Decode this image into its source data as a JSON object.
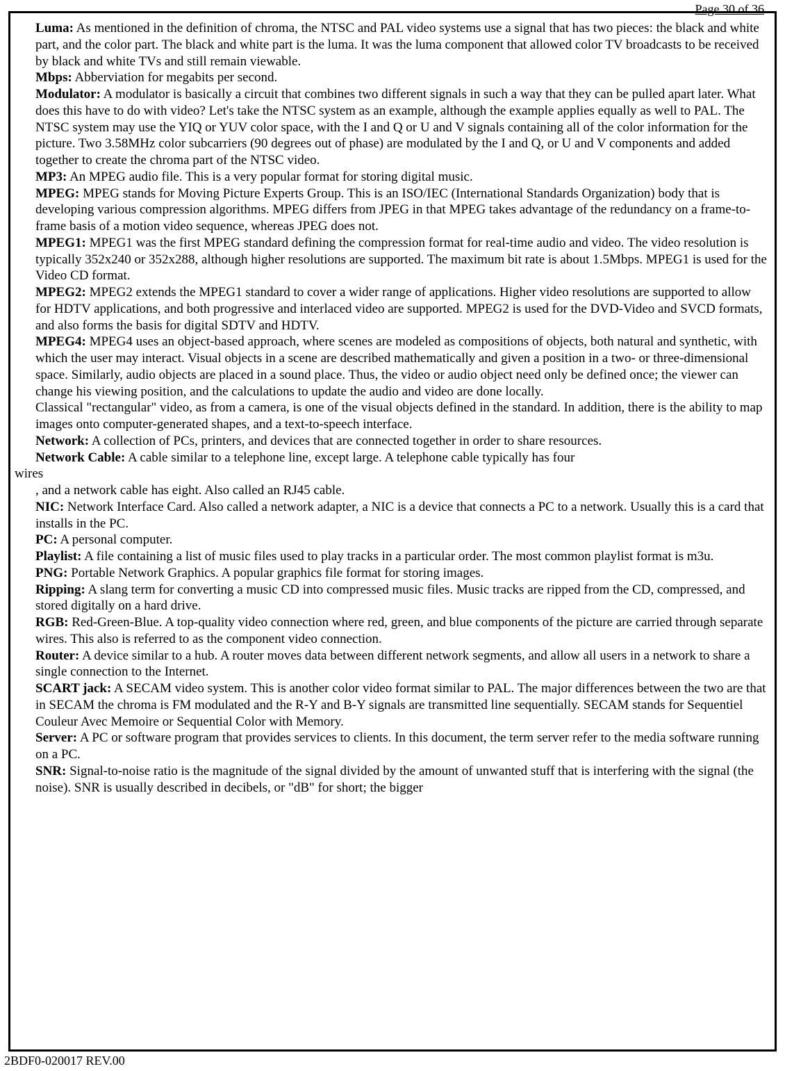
{
  "header": {
    "page_label": "Page 30 of 36"
  },
  "footer": {
    "doc_id": "2BDF0-020017 REV.00"
  },
  "entries": [
    {
      "term": "Luma:",
      "def": " As mentioned in the definition of chroma, the NTSC and PAL video systems use a signal that has two pieces: the black and white part, and the color part. The black and white part is the luma. It was the luma component that allowed color TV broadcasts to be received by black and white TVs and still remain viewable."
    },
    {
      "term": "Mbps:",
      "def": " Abberviation for megabits per second."
    },
    {
      "term": "Modulator:",
      "def": " A modulator is basically a circuit that combines two different signals in such a way that they can be pulled apart later. What does this have to do with video? Let's take the NTSC system as an example, although the example applies equally as well to PAL. The NTSC system may use the YIQ or YUV color space, with the I and Q or U and V signals containing all of the color information for the picture. Two 3.58MHz color subcarriers (90 degrees out of phase) are modulated by the I and Q, or U and V components and added together to create the chroma part of the NTSC video."
    },
    {
      "term": "MP3:",
      "def": " An MPEG audio file. This is a very popular format for storing digital music."
    },
    {
      "term": "MPEG:",
      "def": " MPEG stands for Moving Picture Experts Group. This is an ISO/IEC (International Standards Organization) body that is developing various compression algorithms. MPEG differs from JPEG in that MPEG takes advantage of the redundancy on a frame-to-frame basis of a motion video sequence, whereas JPEG does not."
    },
    {
      "term": "MPEG1:",
      "def": " MPEG1 was the first MPEG standard defining the compression format for real-time audio and video. The video resolution is typically 352x240 or 352x288, although higher resolutions are supported. The maximum bit rate is about 1.5Mbps. MPEG1 is used for the Video CD format."
    },
    {
      "term": "MPEG2:",
      "def": " MPEG2 extends the MPEG1 standard to cover a wider range of applications. Higher video resolutions are supported to allow for HDTV applications, and both progressive and interlaced video are supported. MPEG2 is used for the DVD-Video and SVCD formats, and also forms the basis for digital SDTV and HDTV."
    },
    {
      "term": "MPEG4:",
      "def": " MPEG4 uses an object-based approach, where scenes are modeled as compositions of objects, both natural and synthetic, with which the user may interact. Visual objects in a scene are described mathematically and given a position in a two- or three-dimensional space. Similarly, audio objects are placed in a sound place. Thus, the video or audio object need only be defined once; the viewer can change his viewing position, and the calculations to update the audio and video are done locally."
    },
    {
      "term": "",
      "def": "Classical \"rectangular\" video, as from a camera, is one of the visual objects defined in the standard. In addition, there is the ability to map images onto computer-generated shapes, and a text-to-speech interface."
    },
    {
      "term": "Network:",
      "def": " A collection of PCs, printers, and devices that are connected together in order to share resources."
    },
    {
      "term": "Network Cable:",
      "def": " A cable similar to a telephone line, except large. A telephone cable typically has four "
    }
  ],
  "outdent_text": "wires",
  "entries2": [
    {
      "term": "",
      "def": ", and a network cable has eight. Also called an RJ45 cable."
    },
    {
      "term": "NIC:",
      "def": " Network Interface Card. Also called a network adapter, a NIC is a device that connects a PC to a network. Usually this is a card that installs in the PC."
    },
    {
      "term": "PC:",
      "def": " A personal computer."
    },
    {
      "term": "Playlist:",
      "def": " A file containing a list of music files used to play tracks in a particular order. The most common playlist format is m3u."
    },
    {
      "term": "PNG:",
      "def": " Portable Network Graphics. A popular graphics file format for storing images."
    },
    {
      "term": "Ripping:",
      "def": " A slang term for converting a music CD into compressed music files. Music tracks are ripped from the CD, compressed, and stored digitally on a hard drive."
    },
    {
      "term": "RGB:",
      "def": " Red-Green-Blue. A top-quality video connection where red, green, and blue components of the picture are carried through separate wires. This also is referred to as the component video connection."
    },
    {
      "term": "Router:",
      "def": " A device similar to a hub. A router moves data between different network segments, and allow all users in a network to share a single connection to the Internet."
    },
    {
      "term": "SCART jack:",
      "def": " A SECAM video system. This is another color video format similar to PAL. The major differences between the two are that in SECAM the chroma is FM modulated and the R-Y and B-Y signals are transmitted line sequentially. SECAM stands for Sequentiel Couleur Avec Memoire or Sequential Color with Memory."
    },
    {
      "term": "Server:",
      "def": " A PC or software program that provides services to clients. In this document, the term server refer to the media software running on a PC."
    },
    {
      "term": "SNR:",
      "def": " Signal-to-noise ratio is the magnitude of the signal divided by the amount of unwanted stuff that is interfering with the signal (the noise). SNR is usually described in decibels, or \"dB\" for short; the bigger"
    }
  ]
}
